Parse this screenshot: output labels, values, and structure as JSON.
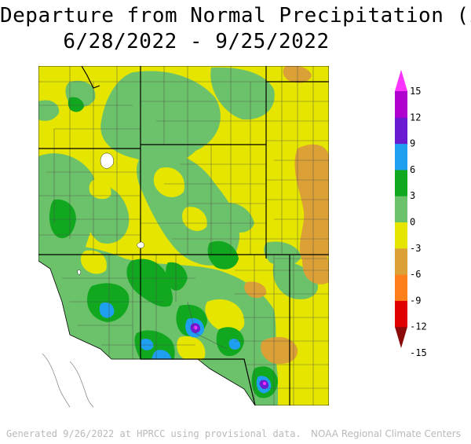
{
  "title": {
    "line1": "Departure from Normal Precipitation (in)",
    "line2": "6/28/2022 - 9/25/2022"
  },
  "legend": {
    "ticks": [
      "15",
      "12",
      "9",
      "6",
      "3",
      "0",
      "-3",
      "-6",
      "-9",
      "-12",
      "-15"
    ],
    "bands": [
      {
        "color": "#8b0a0a"
      },
      {
        "color": "#e00000"
      },
      {
        "color": "#ff7f1a"
      },
      {
        "color": "#dca136"
      },
      {
        "color": "#e5e500"
      },
      {
        "color": "#6cc26a"
      },
      {
        "color": "#11a820"
      },
      {
        "color": "#1e9ff0"
      },
      {
        "color": "#6a1ad1"
      },
      {
        "color": "#b000d0"
      },
      {
        "color": "#ff33ff"
      }
    ]
  },
  "colors": {
    "below_normal_slight": "#e5e500",
    "below_normal_moderate": "#dca136",
    "near_above_normal": "#6cc26a",
    "above_normal": "#11a820",
    "much_above_normal": "#1e9ff0",
    "extreme_above_normal": "#6a1ad1",
    "county_lines": "#4a4a4a",
    "state_lines": "#000000",
    "water": "#ffffff"
  },
  "footer": {
    "left": "Generated 9/26/2022 at HPRCC using provisional data.",
    "right": "NOAA Regional Climate Centers"
  }
}
